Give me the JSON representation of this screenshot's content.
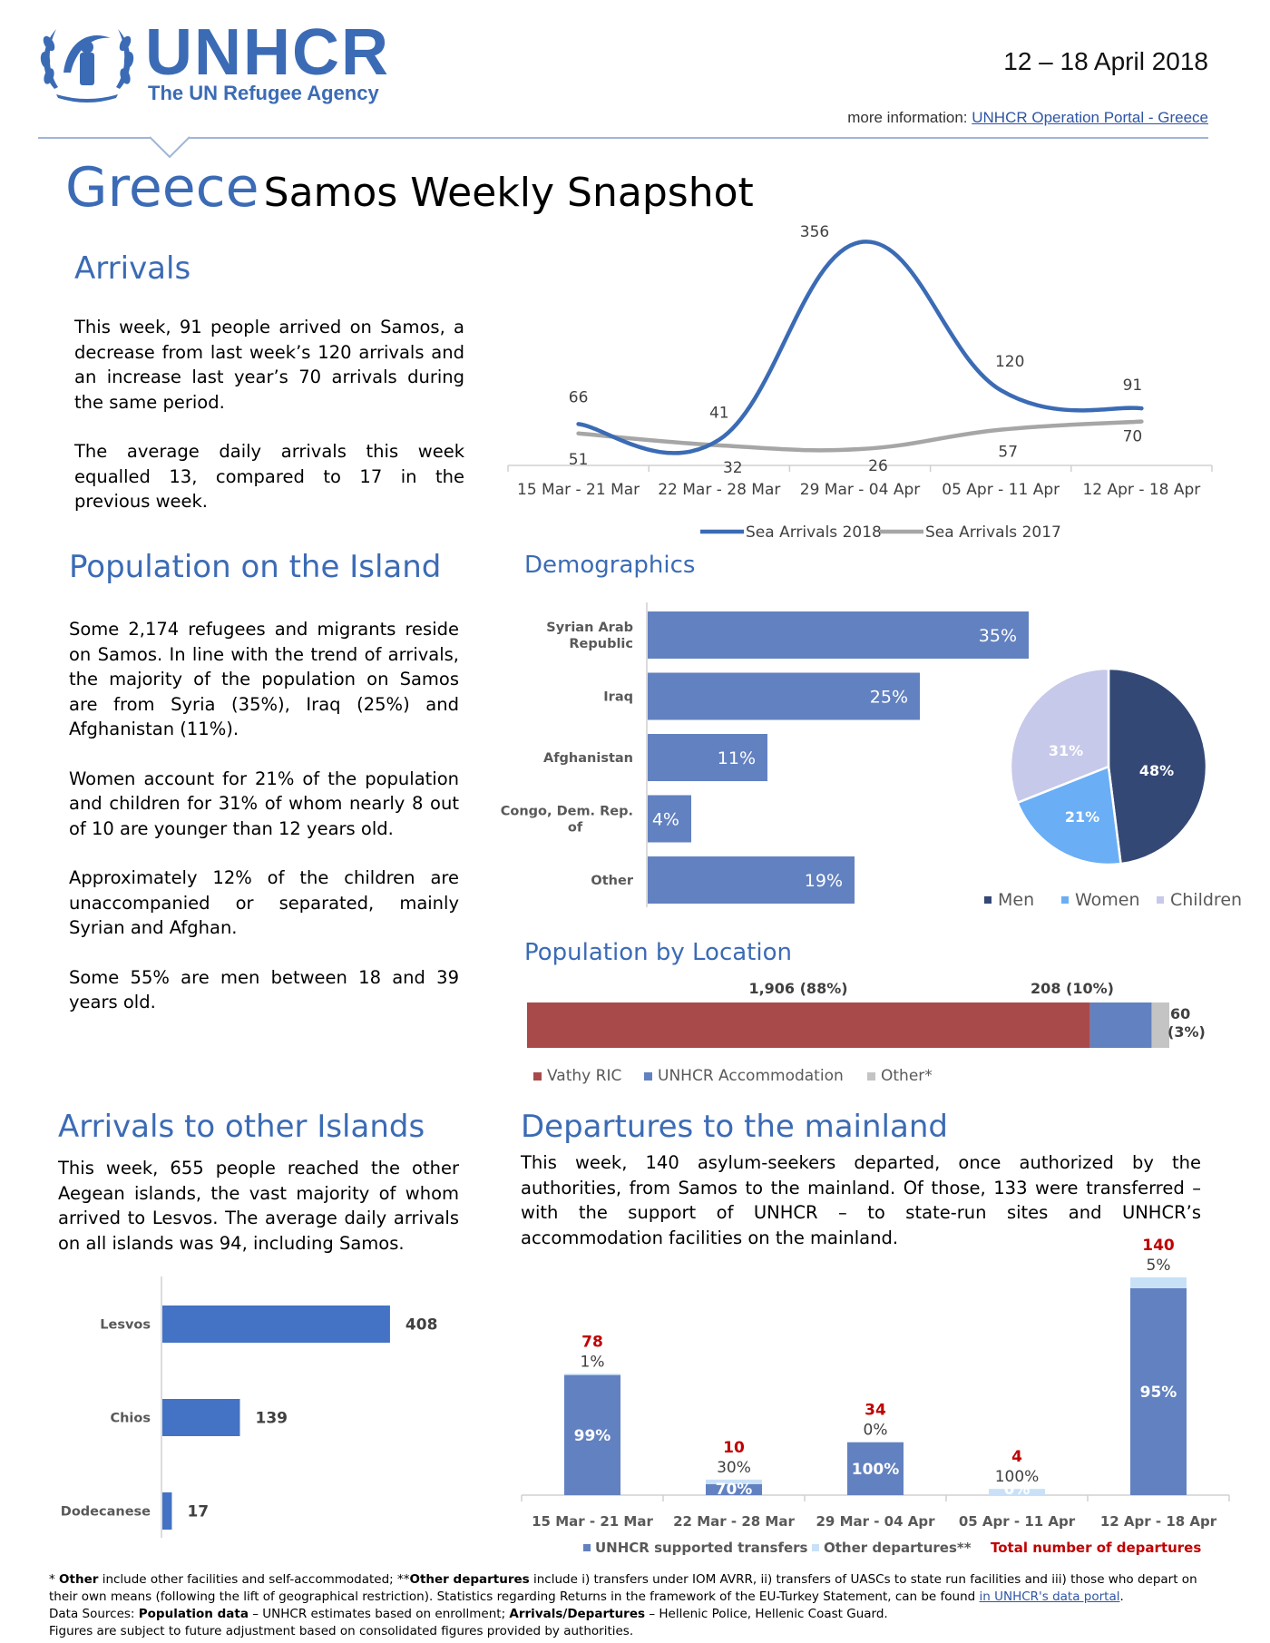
{
  "header": {
    "logo_name": "UNHCR",
    "logo_tagline": "The UN Refugee Agency",
    "date_range": "12 – 18 April 2018",
    "more_info_label": "more information:",
    "more_info_link": "UNHCR Operation Portal - Greece"
  },
  "title": {
    "country": "Greece",
    "subtitle": "Samos Weekly Snapshot"
  },
  "arrivals": {
    "heading": "Arrivals",
    "paragraphs": [
      "This week, 91 people arrived on Samos, a decrease from last week’s 120 arrivals and an increase last year’s 70 arrivals during the same period.",
      "The average daily arrivals this week equalled 13, compared to 17 in the previous week."
    ]
  },
  "population": {
    "heading": "Population on the Island",
    "paragraphs": [
      "Some 2,174 refugees and migrants reside on Samos. In line with the trend of arrivals, the majority of the population on Samos are from Syria (35%), Iraq (25%) and Afghanistan (11%).",
      "Women account for 21% of the population and children for 31% of whom nearly 8 out of 10 are younger than 12 years old.",
      "Approximately 12% of the children are unaccompanied or separated, mainly Syrian and Afghan.",
      "Some 55% are men between 18 and 39 years old."
    ]
  },
  "demographics_heading": "Demographics",
  "location_heading": "Population by Location",
  "other_islands": {
    "heading": "Arrivals to other Islands",
    "paragraph": "This week, 655 people reached the other Aegean islands, the vast majority of whom arrived to Lesvos. The average daily arrivals on all islands was 94, including Samos."
  },
  "departures": {
    "heading": "Departures to the mainland",
    "paragraph": "This week, 140 asylum-seekers departed, once authorized by the authorities, from Samos to the mainland. Of those, 133 were transferred – with the support of UNHCR – to state-run sites and UNHCR’s accommodation facilities on the mainland."
  },
  "chart_data": [
    {
      "id": "arrivals-line",
      "type": "line",
      "categories": [
        "15 Mar - 21 Mar",
        "22 Mar - 28 Mar",
        "29 Mar - 04 Apr",
        "05 Apr - 11 Apr",
        "12 Apr - 18 Apr"
      ],
      "series": [
        {
          "name": "Sea Arrivals 2018",
          "values": [
            66,
            41,
            356,
            120,
            91
          ],
          "color": "#3b6bb5"
        },
        {
          "name": "Sea Arrivals 2017",
          "values": [
            51,
            32,
            26,
            57,
            70
          ],
          "color": "#a6a6a6"
        }
      ],
      "legend": "bottom"
    },
    {
      "id": "demographics-bar",
      "type": "bar",
      "orientation": "horizontal",
      "categories": [
        "Syrian Arab Republic",
        "Iraq",
        "Afghanistan",
        "Congo, Dem. Rep. of",
        "Other"
      ],
      "values": [
        35,
        25,
        11,
        4,
        19
      ],
      "value_labels": [
        "35%",
        "25%",
        "11%",
        "4%",
        "19%"
      ],
      "color": "#6281c0"
    },
    {
      "id": "demographics-pie",
      "type": "pie",
      "categories": [
        "Men",
        "Women",
        "Children"
      ],
      "values": [
        48,
        21,
        31
      ],
      "value_labels": [
        "48%",
        "21%",
        "31%"
      ],
      "colors": [
        "#344876",
        "#6aaef5",
        "#c7c9ea"
      ],
      "legend": "bottom"
    },
    {
      "id": "location-stacked",
      "type": "bar",
      "orientation": "horizontal-stacked",
      "categories": [
        "Vathy RIC",
        "UNHCR Accommodation",
        "Other*"
      ],
      "values": [
        1906,
        208,
        60
      ],
      "value_labels": [
        "1,906  (88%)",
        "208  (10%)",
        "60\n(3%)"
      ],
      "colors": [
        "#a84a4a",
        "#6281c0",
        "#c4c4c4"
      ],
      "legend": "bottom"
    },
    {
      "id": "other-islands-bar",
      "type": "bar",
      "orientation": "horizontal",
      "categories": [
        "Lesvos",
        "Chios",
        "Dodecanese"
      ],
      "values": [
        408,
        139,
        17
      ],
      "color": "#4472c4"
    },
    {
      "id": "departures-stacked",
      "type": "bar",
      "orientation": "vertical-stacked",
      "categories": [
        "15 Mar - 21 Mar",
        "22 Mar - 28 Mar",
        "29 Mar - 04 Apr",
        "05 Apr - 11 Apr",
        "12 Apr - 18 Apr"
      ],
      "totals": [
        78,
        10,
        34,
        4,
        140
      ],
      "series": [
        {
          "name": "UNHCR supported transfers",
          "percent_labels": [
            "99%",
            "70%",
            "100%",
            "0%",
            "95%"
          ],
          "color": "#6281c0"
        },
        {
          "name": "Other departures**",
          "percent_labels": [
            "1%",
            "30%",
            "0%",
            "100%",
            "5%"
          ],
          "color": "#c9e1f7"
        }
      ],
      "total_label": "Total number of departures",
      "total_color": "#c00000",
      "legend": "bottom"
    }
  ],
  "footnote": {
    "line1_a": "* ",
    "line1_b": "Other",
    "line1_c": " include other facilities and self-accommodated; **",
    "line1_d": "Other departures",
    "line1_e": " include i) transfers under IOM AVRR, ii) transfers of UASCs to state run facilities and iii) those who depart on their own means (following the lift of geographical restriction). Statistics regarding Returns in the framework of the EU-Turkey Statement, can be found ",
    "line1_link": "in UNHCR's data portal",
    "line1_end": ".",
    "line2_a": "Data Sources: ",
    "line2_b": "Population data",
    "line2_c": " – UNHCR estimates based on enrollment; ",
    "line2_d": "Arrivals/Departures",
    "line2_e": " – Hellenic Police, Hellenic Coast Guard.",
    "line3": "Figures are subject to future adjustment based on consolidated figures provided by authorities."
  }
}
